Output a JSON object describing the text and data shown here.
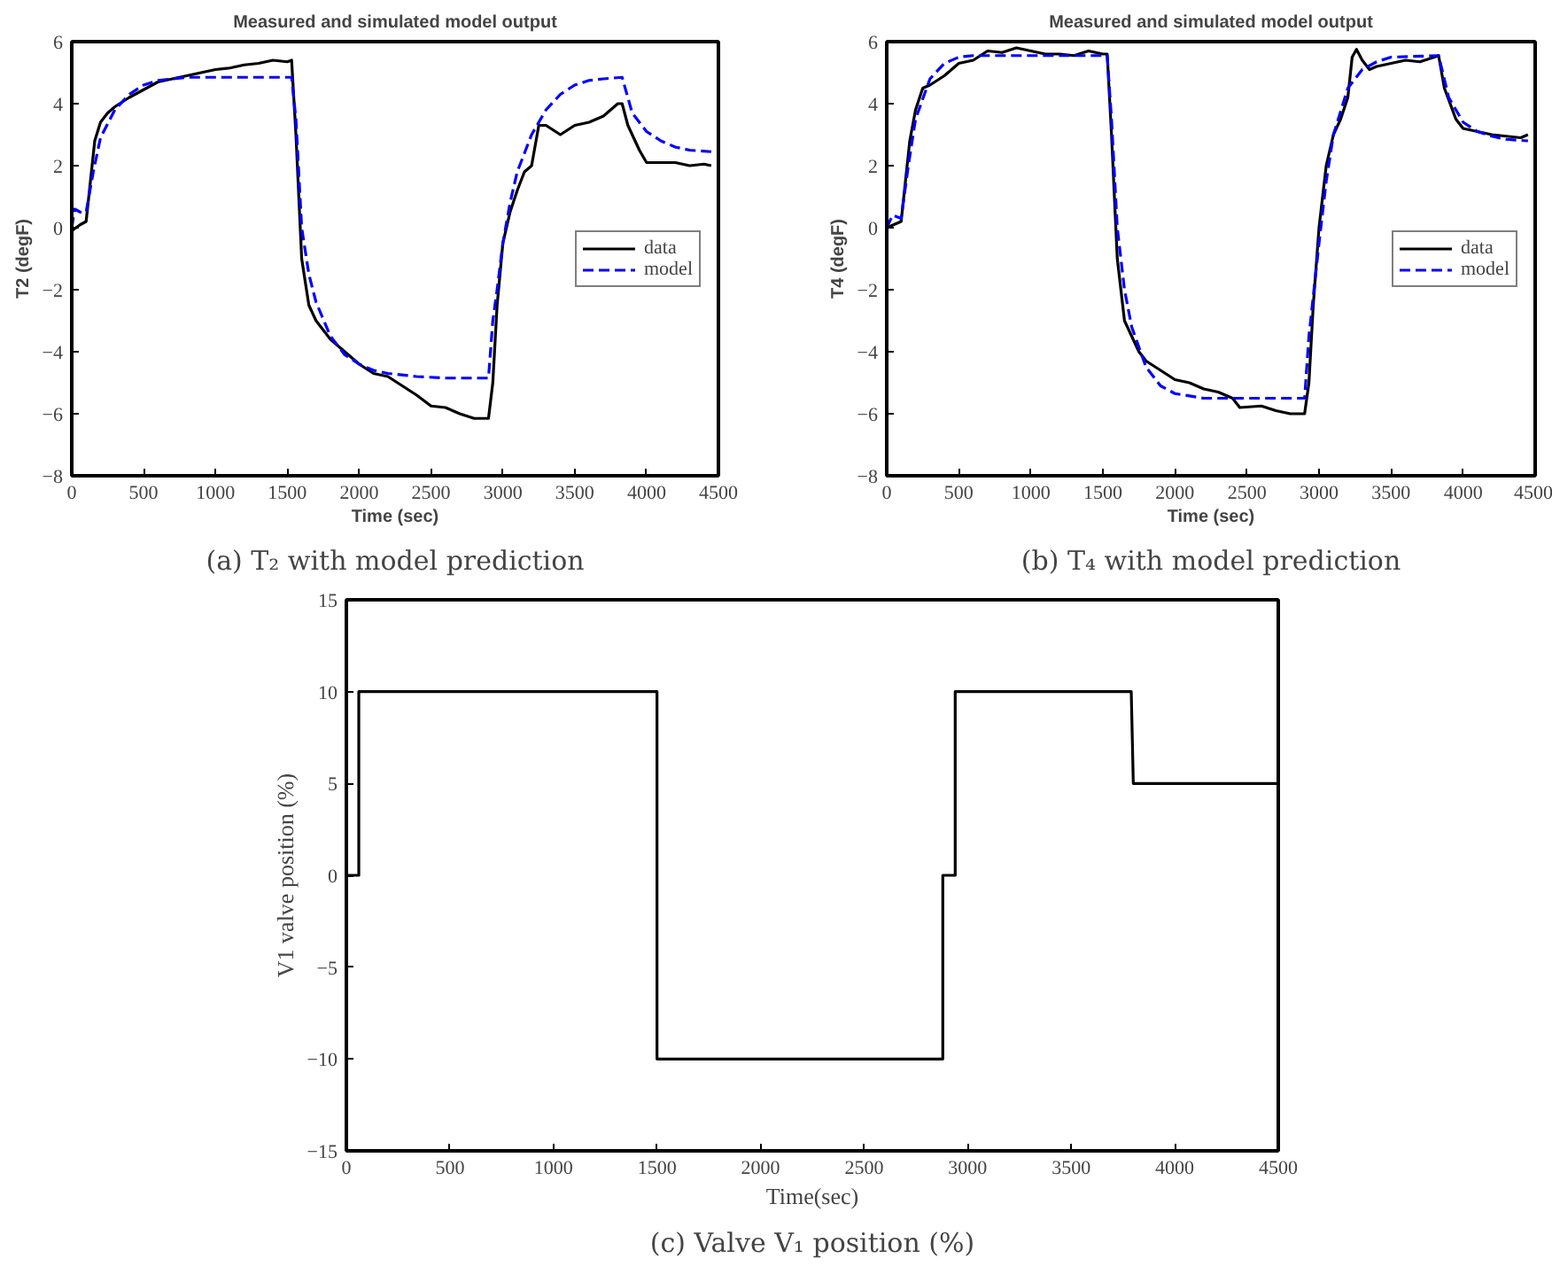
{
  "chart_data": [
    {
      "type": "line",
      "title": "Measured and simulated model output",
      "xlabel": "Time (sec)",
      "ylabel": "T2 (degF)",
      "xlim": [
        0,
        4500
      ],
      "ylim": [
        -8,
        6
      ],
      "xticks": [
        0,
        500,
        1000,
        1500,
        2000,
        2500,
        3000,
        3500,
        4000,
        4500
      ],
      "yticks": [
        -8,
        -6,
        -4,
        -2,
        0,
        2,
        4,
        6
      ],
      "grid": false,
      "legend": "right",
      "annotations": [
        "(a) T₂ with model prediction"
      ],
      "series": [
        {
          "name": "data",
          "color": "#000000",
          "line_style": "solid",
          "x": [
            0,
            60,
            100,
            130,
            160,
            200,
            250,
            300,
            400,
            500,
            600,
            700,
            800,
            900,
            1000,
            1100,
            1200,
            1300,
            1400,
            1500,
            1530,
            1560,
            1600,
            1650,
            1700,
            1750,
            1800,
            1900,
            2000,
            2100,
            2200,
            2300,
            2400,
            2500,
            2600,
            2700,
            2800,
            2900,
            2930,
            2960,
            3000,
            3050,
            3100,
            3150,
            3200,
            3250,
            3300,
            3400,
            3500,
            3600,
            3700,
            3800,
            3830,
            3870,
            3950,
            4000,
            4100,
            4200,
            4300,
            4400,
            4450
          ],
          "values": [
            -0.1,
            0.1,
            0.2,
            1.5,
            2.8,
            3.4,
            3.7,
            3.9,
            4.2,
            4.45,
            4.7,
            4.8,
            4.9,
            5.0,
            5.1,
            5.15,
            5.25,
            5.3,
            5.4,
            5.35,
            5.4,
            3.0,
            -1.0,
            -2.5,
            -3.0,
            -3.3,
            -3.6,
            -4.0,
            -4.4,
            -4.7,
            -4.8,
            -5.1,
            -5.4,
            -5.75,
            -5.8,
            -6.0,
            -6.15,
            -6.15,
            -5.0,
            -2.5,
            -0.5,
            0.5,
            1.2,
            1.8,
            2.0,
            3.3,
            3.3,
            3.0,
            3.3,
            3.4,
            3.6,
            4.0,
            4.0,
            3.3,
            2.5,
            2.1,
            2.1,
            2.1,
            2.0,
            2.05,
            2.0
          ]
        },
        {
          "name": "model",
          "color": "#0000ff",
          "line_style": "dashed",
          "x": [
            0,
            20,
            60,
            100,
            150,
            200,
            300,
            400,
            500,
            600,
            800,
            1000,
            1530,
            1560,
            1600,
            1650,
            1700,
            1800,
            1900,
            2000,
            2100,
            2200,
            2400,
            2600,
            2900,
            2930,
            2960,
            3000,
            3050,
            3100,
            3200,
            3300,
            3400,
            3500,
            3600,
            3700,
            3830,
            3900,
            4000,
            4100,
            4200,
            4300,
            4450
          ],
          "values": [
            0,
            0.6,
            0.5,
            0.5,
            1.8,
            2.9,
            3.8,
            4.3,
            4.6,
            4.75,
            4.85,
            4.85,
            4.85,
            3.5,
            0,
            -1.5,
            -2.4,
            -3.5,
            -4.1,
            -4.4,
            -4.6,
            -4.7,
            -4.8,
            -4.85,
            -4.85,
            -3.0,
            -2.0,
            -0.5,
            0.8,
            1.8,
            3.0,
            3.8,
            4.3,
            4.6,
            4.75,
            4.8,
            4.85,
            3.7,
            3.1,
            2.8,
            2.6,
            2.5,
            2.45
          ]
        }
      ]
    },
    {
      "type": "line",
      "title": "Measured and simulated model output",
      "xlabel": "Time (sec)",
      "ylabel": "T4 (degF)",
      "xlim": [
        0,
        4500
      ],
      "ylim": [
        -8,
        6
      ],
      "xticks": [
        0,
        500,
        1000,
        1500,
        2000,
        2500,
        3000,
        3500,
        4000,
        4500
      ],
      "yticks": [
        -8,
        -6,
        -4,
        -2,
        0,
        2,
        4,
        6
      ],
      "grid": false,
      "legend": "right",
      "annotations": [
        "(b) T₄ with model prediction"
      ],
      "series": [
        {
          "name": "data",
          "color": "#000000",
          "line_style": "solid",
          "x": [
            0,
            50,
            100,
            130,
            160,
            200,
            250,
            300,
            400,
            500,
            600,
            700,
            800,
            900,
            1000,
            1100,
            1200,
            1300,
            1400,
            1500,
            1530,
            1560,
            1600,
            1650,
            1700,
            1750,
            1800,
            1900,
            2000,
            2100,
            2200,
            2300,
            2400,
            2450,
            2600,
            2700,
            2800,
            2900,
            2930,
            2960,
            3000,
            3050,
            3100,
            3150,
            3200,
            3230,
            3260,
            3300,
            3350,
            3400,
            3500,
            3600,
            3700,
            3800,
            3830,
            3870,
            3950,
            4000,
            4100,
            4200,
            4300,
            4400,
            4450
          ],
          "values": [
            0,
            0.1,
            0.2,
            1.5,
            2.8,
            3.8,
            4.5,
            4.6,
            4.9,
            5.3,
            5.4,
            5.7,
            5.65,
            5.8,
            5.7,
            5.6,
            5.6,
            5.55,
            5.7,
            5.6,
            5.6,
            3.0,
            -1.0,
            -3.0,
            -3.5,
            -4.0,
            -4.3,
            -4.6,
            -4.9,
            -5.0,
            -5.2,
            -5.3,
            -5.5,
            -5.8,
            -5.75,
            -5.9,
            -6.0,
            -6.0,
            -5.0,
            -2.5,
            0.0,
            2.0,
            3.0,
            3.5,
            4.2,
            5.5,
            5.75,
            5.4,
            5.1,
            5.2,
            5.3,
            5.4,
            5.35,
            5.5,
            5.55,
            4.5,
            3.5,
            3.2,
            3.1,
            3.0,
            2.95,
            2.9,
            3.0
          ]
        },
        {
          "name": "model",
          "color": "#0000ff",
          "line_style": "dashed",
          "x": [
            0,
            40,
            100,
            150,
            200,
            300,
            400,
            500,
            600,
            1530,
            1560,
            1600,
            1650,
            1700,
            1800,
            1900,
            2000,
            2200,
            2900,
            2930,
            3000,
            3050,
            3100,
            3200,
            3300,
            3400,
            3500,
            3830,
            3900,
            4000,
            4100,
            4200,
            4300,
            4450
          ],
          "values": [
            0,
            0.4,
            0.3,
            2.0,
            3.5,
            4.8,
            5.3,
            5.5,
            5.55,
            5.55,
            3.5,
            0,
            -2.0,
            -3.2,
            -4.5,
            -5.1,
            -5.35,
            -5.5,
            -5.5,
            -3.5,
            -0.5,
            1.5,
            3.0,
            4.5,
            5.1,
            5.35,
            5.5,
            5.55,
            4.2,
            3.4,
            3.1,
            2.95,
            2.85,
            2.8
          ]
        }
      ]
    },
    {
      "type": "line",
      "xlabel": "Time(sec)",
      "ylabel": "V1 valve position (%)",
      "xlim": [
        0,
        4500
      ],
      "ylim": [
        -15,
        15
      ],
      "xticks": [
        0,
        500,
        1000,
        1500,
        2000,
        2500,
        3000,
        3500,
        4000,
        4500
      ],
      "yticks": [
        -15,
        -10,
        -5,
        0,
        5,
        10,
        15
      ],
      "grid": false,
      "annotations": [
        "(c) Valve V₁ position (%)"
      ],
      "series": [
        {
          "color": "#000000",
          "line_style": "solid",
          "x": [
            0,
            60,
            60,
            1500,
            1500,
            2880,
            2880,
            2940,
            2940,
            3790,
            3800,
            4500
          ],
          "values": [
            0,
            0,
            10,
            10,
            -10,
            -10,
            0,
            0,
            10,
            10,
            5,
            5
          ]
        }
      ]
    }
  ]
}
